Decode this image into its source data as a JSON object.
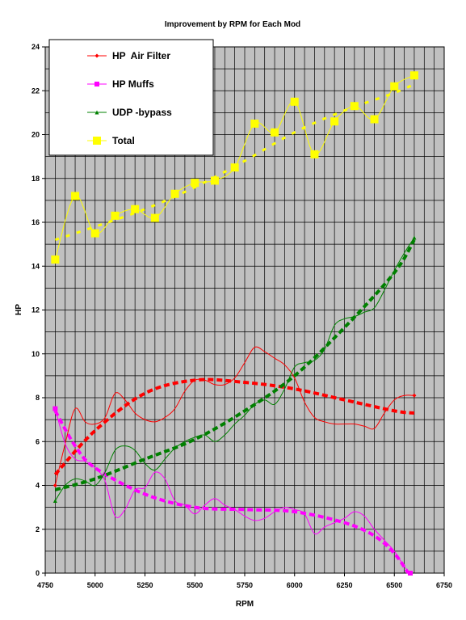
{
  "chart_data": {
    "type": "line",
    "title": "Improvement by RPM for Each Mod",
    "xlabel": "RPM",
    "ylabel": "HP",
    "xlim": [
      4750,
      6750
    ],
    "ylim": [
      0,
      24
    ],
    "x_minor_step": 50,
    "x_ticks": [
      4750,
      5000,
      5250,
      5500,
      5750,
      6000,
      6250,
      6500,
      6750
    ],
    "y_ticks": [
      0,
      2,
      4,
      6,
      8,
      10,
      12,
      14,
      16,
      18,
      20,
      22,
      24
    ],
    "grid": true,
    "legend_position": "top-left",
    "series": [
      {
        "name": "HP  Air Filter",
        "color": "#ff0000",
        "marker": "diamond",
        "x": [
          4800,
          4850,
          4900,
          4950,
          5000,
          5050,
          5100,
          5150,
          5200,
          5250,
          5300,
          5350,
          5400,
          5450,
          5500,
          5550,
          5600,
          5650,
          5700,
          5750,
          5800,
          5850,
          5900,
          5950,
          6000,
          6050,
          6100,
          6150,
          6200,
          6250,
          6300,
          6350,
          6400,
          6450,
          6500,
          6550,
          6600
        ],
        "y": [
          4.0,
          5.9,
          7.5,
          6.9,
          6.8,
          7.1,
          8.2,
          7.9,
          7.3,
          7.0,
          6.9,
          7.1,
          7.5,
          8.3,
          8.8,
          8.8,
          8.6,
          8.6,
          8.9,
          9.6,
          10.3,
          10.1,
          9.8,
          9.5,
          8.9,
          7.8,
          7.1,
          6.9,
          6.8,
          6.8,
          6.8,
          6.7,
          6.6,
          7.3,
          7.9,
          8.1,
          8.1
        ],
        "trend": [
          [
            4800,
            4.5
          ],
          [
            5000,
            6.5
          ],
          [
            5250,
            8.2
          ],
          [
            5500,
            8.8
          ],
          [
            5750,
            8.7
          ],
          [
            6000,
            8.4
          ],
          [
            6250,
            7.9
          ],
          [
            6500,
            7.4
          ],
          [
            6600,
            7.3
          ]
        ]
      },
      {
        "name": "HP Muffs",
        "color": "#ff00ff",
        "marker": "square",
        "x": [
          4800,
          4850,
          4900,
          4950,
          5000,
          5050,
          5100,
          5150,
          5200,
          5250,
          5300,
          5350,
          5400,
          5450,
          5500,
          5550,
          5600,
          5650,
          5700,
          5750,
          5800,
          5850,
          5900,
          5950,
          6000,
          6050,
          6100,
          6150,
          6200,
          6250,
          6300,
          6350,
          6400,
          6450,
          6500,
          6550,
          6580
        ],
        "y": [
          7.5,
          5.9,
          5.2,
          5.1,
          4.8,
          4.2,
          2.6,
          2.9,
          3.8,
          3.9,
          4.6,
          4.3,
          3.3,
          3.1,
          2.7,
          3.1,
          3.4,
          3.1,
          2.9,
          2.6,
          2.4,
          2.5,
          2.8,
          3.0,
          2.9,
          2.7,
          1.8,
          2.1,
          2.3,
          2.5,
          2.8,
          2.6,
          2.0,
          1.5,
          1.0,
          0.3,
          0.0
        ],
        "trend": [
          [
            4800,
            7.4
          ],
          [
            4900,
            5.8
          ],
          [
            5000,
            4.8
          ],
          [
            5250,
            3.6
          ],
          [
            5500,
            3.0
          ],
          [
            5750,
            2.9
          ],
          [
            6000,
            2.8
          ],
          [
            6250,
            2.3
          ],
          [
            6400,
            1.7
          ],
          [
            6500,
            0.9
          ],
          [
            6570,
            0.0
          ]
        ]
      },
      {
        "name": "UDP -bypass",
        "color": "#008000",
        "marker": "triangle",
        "x": [
          4800,
          4850,
          4900,
          4950,
          5000,
          5050,
          5100,
          5150,
          5200,
          5250,
          5300,
          5350,
          5400,
          5450,
          5500,
          5550,
          5600,
          5650,
          5700,
          5750,
          5800,
          5850,
          5900,
          5950,
          6000,
          6050,
          6100,
          6150,
          6200,
          6250,
          6300,
          6350,
          6400,
          6450,
          6500,
          6550,
          6600
        ],
        "y": [
          3.3,
          4.0,
          4.3,
          4.2,
          4.0,
          4.6,
          5.6,
          5.8,
          5.6,
          5.0,
          4.7,
          5.2,
          5.7,
          6.0,
          6.2,
          6.3,
          6.0,
          6.3,
          6.8,
          7.2,
          7.7,
          7.9,
          7.7,
          8.4,
          9.4,
          9.6,
          9.7,
          10.2,
          11.3,
          11.6,
          11.7,
          11.9,
          12.1,
          12.9,
          13.8,
          14.6,
          15.3
        ],
        "trend": [
          [
            4800,
            3.8
          ],
          [
            5000,
            4.3
          ],
          [
            5250,
            5.2
          ],
          [
            5500,
            6.1
          ],
          [
            5750,
            7.4
          ],
          [
            6000,
            9.0
          ],
          [
            6250,
            11.2
          ],
          [
            6500,
            13.7
          ],
          [
            6600,
            15.2
          ]
        ]
      },
      {
        "name": "Total",
        "color": "#ffff00",
        "marker": "square",
        "x": [
          4800,
          4900,
          5000,
          5100,
          5200,
          5300,
          5400,
          5500,
          5600,
          5700,
          5800,
          5900,
          6000,
          6100,
          6200,
          6300,
          6400,
          6500,
          6600
        ],
        "y": [
          14.3,
          17.2,
          15.5,
          16.3,
          16.6,
          16.2,
          17.3,
          17.8,
          17.9,
          18.5,
          20.5,
          20.1,
          21.5,
          19.1,
          20.6,
          21.3,
          20.7,
          22.2,
          22.7
        ],
        "trend": [
          [
            4800,
            15.2
          ],
          [
            5000,
            15.8
          ],
          [
            5250,
            16.6
          ],
          [
            5500,
            17.6
          ],
          [
            5750,
            18.8
          ],
          [
            6000,
            20.1
          ],
          [
            6250,
            21.1
          ],
          [
            6500,
            21.9
          ],
          [
            6600,
            22.3
          ]
        ]
      }
    ]
  }
}
